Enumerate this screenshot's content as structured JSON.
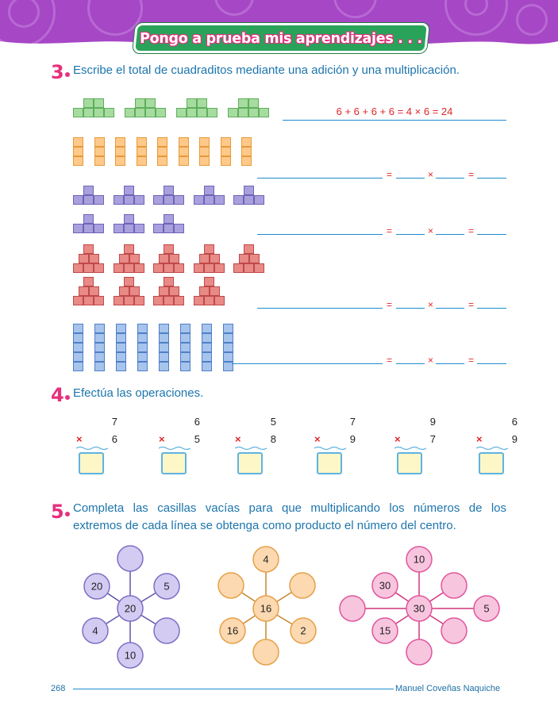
{
  "header": {
    "title": "Pongo a prueba mis aprendizajes . . ."
  },
  "colors": {
    "green": "#a6dca0",
    "orange": "#ffc98a",
    "purple": "#a9a1dd",
    "red": "#e88a86",
    "blue": "#a7c4ec",
    "pink_accent": "#e6307e",
    "text_blue": "#1d75ad"
  },
  "ex3": {
    "number": "3",
    "instruction": "Escribe el total de cuadraditos mediante una adición y una multiplicación.",
    "given_answer": "6 + 6 + 6 + 6 = 4 × 6 = 24",
    "eq": "=",
    "times": "×",
    "eq2": "="
  },
  "ex4": {
    "number": "4",
    "instruction": "Efectúa las operaciones.",
    "ops": [
      {
        "top": "7",
        "sign": "×",
        "bottom": "6"
      },
      {
        "top": "6",
        "sign": "×",
        "bottom": "5"
      },
      {
        "top": "5",
        "sign": "×",
        "bottom": "8"
      },
      {
        "top": "7",
        "sign": "×",
        "bottom": "9"
      },
      {
        "top": "9",
        "sign": "×",
        "bottom": "7"
      },
      {
        "top": "6",
        "sign": "×",
        "bottom": "9"
      }
    ]
  },
  "ex5": {
    "number": "5",
    "instruction_line1": "Completa las casillas vacías para que multiplicando los números de los",
    "instruction_line2": "extremos de cada línea se obtenga como producto el número del centro.",
    "stars": [
      {
        "center": "20",
        "top": "",
        "upper_right": "5",
        "lower_right": "",
        "bottom": "10",
        "lower_left": "4",
        "upper_left": "20"
      },
      {
        "center": "16",
        "top": "4",
        "upper_right": "",
        "lower_right": "2",
        "bottom": "",
        "lower_left": "16",
        "upper_left": ""
      },
      {
        "center": "30",
        "top": "10",
        "upper_right": "",
        "right": "5",
        "lower_right": "",
        "bottom": "",
        "lower_left": "15",
        "left": "",
        "upper_left": "30"
      }
    ]
  },
  "footer": {
    "page": "268",
    "author": "Manuel Coveñas Naquiche"
  }
}
